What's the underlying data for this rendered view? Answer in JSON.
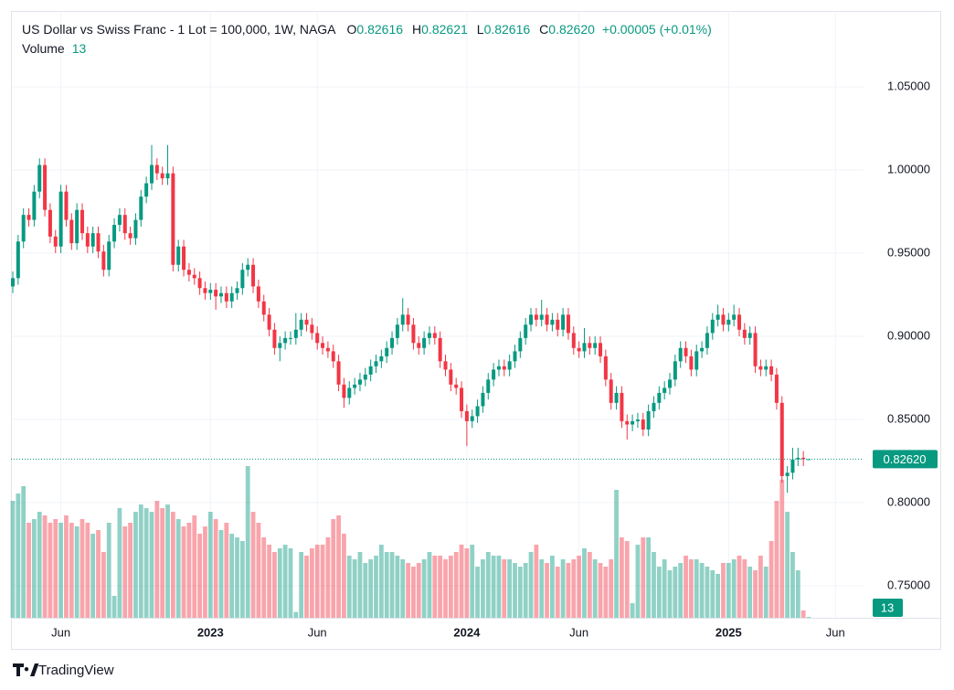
{
  "header": {
    "title": "US Dollar vs Swiss Franc - 1 Lot = 100,000, 1W, NAGA",
    "ohlc": [
      {
        "label": "O",
        "value": "0.82616"
      },
      {
        "label": "H",
        "value": "0.82621"
      },
      {
        "label": "L",
        "value": "0.82616"
      },
      {
        "label": "C",
        "value": "0.82620"
      }
    ],
    "change": "+0.00005 (+0.01%)",
    "volume_label": "Volume"
  },
  "footer": {
    "brand": "TradingView"
  },
  "chart_data": {
    "type": "candlestick",
    "up_color": "#089981",
    "down_color": "#f23645",
    "grid": true,
    "ylim": [
      0.7308,
      1.0956
    ],
    "yticks": [
      {
        "value": 0.75,
        "label": "0.75000"
      },
      {
        "value": 0.8,
        "label": "0.80000"
      },
      {
        "value": 0.85,
        "label": "0.85000"
      },
      {
        "value": 0.9,
        "label": "0.90000"
      },
      {
        "value": 0.95,
        "label": "0.95000"
      },
      {
        "value": 1.0,
        "label": "1.00000"
      },
      {
        "value": 1.05,
        "label": "1.05000"
      }
    ],
    "last_price": {
      "value": 0.8262,
      "label": "0.82620"
    },
    "volume_lim": [
      0,
      2400
    ],
    "categories": [
      null,
      null,
      null,
      null,
      null,
      null,
      null,
      null,
      null,
      "Jun",
      null,
      null,
      null,
      null,
      null,
      null,
      null,
      null,
      null,
      null,
      null,
      null,
      null,
      null,
      null,
      null,
      null,
      null,
      null,
      null,
      null,
      null,
      null,
      null,
      null,
      null,
      null,
      "2023",
      null,
      null,
      null,
      null,
      null,
      null,
      null,
      null,
      null,
      null,
      null,
      null,
      null,
      null,
      null,
      null,
      null,
      null,
      null,
      "Jun",
      null,
      null,
      null,
      null,
      null,
      null,
      null,
      null,
      null,
      null,
      null,
      null,
      null,
      null,
      null,
      null,
      null,
      null,
      null,
      null,
      null,
      null,
      null,
      null,
      null,
      null,
      null,
      "2024",
      null,
      null,
      null,
      null,
      null,
      null,
      null,
      null,
      null,
      null,
      null,
      null,
      null,
      null,
      null,
      null,
      null,
      null,
      null,
      null,
      "Jun",
      null,
      null,
      null,
      null,
      null,
      null,
      null,
      null,
      null,
      null,
      null,
      null,
      null,
      null,
      null,
      null,
      null,
      null,
      null,
      null,
      null,
      null,
      null,
      null,
      null,
      null,
      null,
      "2025",
      null,
      null,
      null,
      null,
      null,
      null,
      null,
      null,
      null,
      null,
      null,
      null,
      null,
      null,
      null,
      null,
      null,
      null,
      null,
      "Jun",
      null,
      null,
      null,
      null,
      null
    ],
    "open": [
      0.93,
      0.935,
      0.957,
      0.973,
      0.97,
      0.987,
      1.003,
      0.976,
      0.96,
      0.954,
      0.987,
      0.97,
      0.956,
      0.976,
      0.962,
      0.954,
      0.962,
      0.951,
      0.94,
      0.957,
      0.967,
      0.973,
      0.962,
      0.959,
      0.97,
      0.984,
      0.992,
      1.003,
      0.998,
      0.995,
      0.998,
      0.943,
      0.954,
      0.94,
      0.937,
      0.935,
      0.929,
      0.926,
      0.928,
      0.924,
      0.926,
      0.921,
      0.926,
      0.929,
      0.94,
      0.943,
      0.93,
      0.921,
      0.913,
      0.904,
      0.893,
      0.896,
      0.899,
      0.899,
      0.904,
      0.91,
      0.907,
      0.902,
      0.896,
      0.893,
      0.891,
      0.885,
      0.871,
      0.863,
      0.869,
      0.871,
      0.874,
      0.877,
      0.882,
      0.885,
      0.888,
      0.893,
      0.899,
      0.907,
      0.913,
      0.907,
      0.896,
      0.893,
      0.899,
      0.902,
      0.899,
      0.885,
      0.88,
      0.871,
      0.869,
      0.855,
      0.849,
      0.852,
      0.858,
      0.866,
      0.874,
      0.88,
      0.882,
      0.88,
      0.885,
      0.891,
      0.899,
      0.907,
      0.913,
      0.91,
      0.913,
      0.907,
      0.91,
      0.904,
      0.913,
      0.902,
      0.893,
      0.891,
      0.896,
      0.893,
      0.896,
      0.888,
      0.874,
      0.86,
      0.866,
      0.849,
      0.847,
      0.849,
      0.85,
      0.844,
      0.855,
      0.86,
      0.866,
      0.869,
      0.874,
      0.885,
      0.893,
      0.888,
      0.88,
      0.891,
      0.893,
      0.902,
      0.91,
      0.913,
      0.907,
      0.91,
      0.913,
      0.904,
      0.899,
      0.902,
      0.882,
      0.88,
      0.882,
      0.877,
      0.86,
      0.816,
      0.818,
      0.826,
      0.827,
      0.82616,
      null,
      null,
      null,
      null,
      null,
      null,
      null,
      null,
      null,
      null
    ],
    "high": [
      0.939,
      0.961,
      0.977,
      0.977,
      0.991,
      1.007,
      1.007,
      0.98,
      0.964,
      0.991,
      0.991,
      0.974,
      0.98,
      0.98,
      0.966,
      0.966,
      0.966,
      0.955,
      0.961,
      0.971,
      0.977,
      0.977,
      0.966,
      0.974,
      0.988,
      0.996,
      1.015,
      1.007,
      1.002,
      1.015,
      1.002,
      0.958,
      0.958,
      0.944,
      0.941,
      0.939,
      0.933,
      0.932,
      0.932,
      0.93,
      0.93,
      0.93,
      0.933,
      0.944,
      0.947,
      0.947,
      0.934,
      0.925,
      0.917,
      0.908,
      0.9,
      0.903,
      0.903,
      0.914,
      0.914,
      0.914,
      0.911,
      0.906,
      0.9,
      0.897,
      0.895,
      0.889,
      0.875,
      0.873,
      0.875,
      0.878,
      0.881,
      0.886,
      0.889,
      0.892,
      0.897,
      0.903,
      0.911,
      0.923,
      0.917,
      0.911,
      0.9,
      0.903,
      0.906,
      0.906,
      0.903,
      0.889,
      0.884,
      0.875,
      0.873,
      0.859,
      0.856,
      0.862,
      0.87,
      0.878,
      0.884,
      0.886,
      0.886,
      0.889,
      0.895,
      0.903,
      0.911,
      0.917,
      0.917,
      0.922,
      0.917,
      0.914,
      0.914,
      0.917,
      0.917,
      0.906,
      0.897,
      0.905,
      0.9,
      0.9,
      0.9,
      0.892,
      0.878,
      0.87,
      0.87,
      0.853,
      0.853,
      0.854,
      0.854,
      0.859,
      0.864,
      0.87,
      0.873,
      0.878,
      0.889,
      0.897,
      0.897,
      0.892,
      0.895,
      0.897,
      0.906,
      0.914,
      0.919,
      0.917,
      0.914,
      0.919,
      0.917,
      0.908,
      0.906,
      0.906,
      0.886,
      0.886,
      0.886,
      0.881,
      0.864,
      0.822,
      0.833,
      0.833,
      0.831,
      0.82621,
      null,
      null,
      null,
      null,
      null,
      null,
      null,
      null,
      null,
      null
    ],
    "low": [
      0.926,
      0.931,
      0.953,
      0.966,
      0.966,
      0.983,
      0.972,
      0.956,
      0.95,
      0.95,
      0.966,
      0.952,
      0.952,
      0.958,
      0.95,
      0.95,
      0.947,
      0.936,
      0.936,
      0.953,
      0.963,
      0.958,
      0.955,
      0.955,
      0.966,
      0.98,
      0.988,
      0.994,
      0.991,
      0.991,
      0.939,
      0.939,
      0.936,
      0.933,
      0.931,
      0.925,
      0.922,
      0.922,
      0.916,
      0.92,
      0.917,
      0.917,
      0.922,
      0.925,
      0.936,
      0.926,
      0.917,
      0.909,
      0.9,
      0.889,
      0.885,
      0.892,
      0.895,
      0.895,
      0.9,
      0.903,
      0.898,
      0.892,
      0.889,
      0.887,
      0.881,
      0.867,
      0.857,
      0.859,
      0.865,
      0.867,
      0.87,
      0.873,
      0.878,
      0.881,
      0.884,
      0.889,
      0.895,
      0.903,
      0.903,
      0.892,
      0.889,
      0.889,
      0.895,
      0.895,
      0.881,
      0.876,
      0.867,
      0.865,
      0.851,
      0.834,
      0.845,
      0.848,
      0.854,
      0.862,
      0.87,
      0.876,
      0.876,
      0.876,
      0.881,
      0.887,
      0.895,
      0.903,
      0.906,
      0.906,
      0.903,
      0.903,
      0.9,
      0.9,
      0.898,
      0.889,
      0.887,
      0.887,
      0.889,
      0.889,
      0.884,
      0.87,
      0.856,
      0.856,
      0.845,
      0.838,
      0.843,
      0.845,
      0.84,
      0.84,
      0.851,
      0.856,
      0.862,
      0.865,
      0.87,
      0.881,
      0.884,
      0.876,
      0.876,
      0.887,
      0.889,
      0.898,
      0.906,
      0.903,
      0.903,
      0.906,
      0.9,
      0.895,
      0.895,
      0.878,
      0.876,
      0.876,
      0.873,
      0.856,
      0.812,
      0.806,
      0.814,
      0.822,
      0.822,
      0.82616,
      null,
      null,
      null,
      null,
      null,
      null,
      null,
      null,
      null,
      null
    ],
    "close": [
      0.935,
      0.957,
      0.973,
      0.97,
      0.987,
      1.003,
      0.976,
      0.96,
      0.954,
      0.987,
      0.97,
      0.956,
      0.976,
      0.962,
      0.954,
      0.962,
      0.951,
      0.94,
      0.957,
      0.967,
      0.973,
      0.962,
      0.959,
      0.97,
      0.984,
      0.992,
      1.003,
      0.998,
      0.995,
      0.998,
      0.943,
      0.954,
      0.94,
      0.937,
      0.935,
      0.929,
      0.926,
      0.928,
      0.924,
      0.926,
      0.921,
      0.926,
      0.929,
      0.94,
      0.943,
      0.93,
      0.921,
      0.913,
      0.904,
      0.893,
      0.896,
      0.899,
      0.899,
      0.904,
      0.91,
      0.907,
      0.902,
      0.896,
      0.893,
      0.891,
      0.885,
      0.871,
      0.863,
      0.869,
      0.871,
      0.874,
      0.877,
      0.882,
      0.885,
      0.888,
      0.893,
      0.899,
      0.907,
      0.913,
      0.907,
      0.896,
      0.893,
      0.899,
      0.902,
      0.899,
      0.885,
      0.88,
      0.871,
      0.869,
      0.855,
      0.849,
      0.852,
      0.858,
      0.866,
      0.874,
      0.88,
      0.882,
      0.88,
      0.885,
      0.891,
      0.899,
      0.907,
      0.913,
      0.91,
      0.913,
      0.907,
      0.91,
      0.904,
      0.913,
      0.902,
      0.893,
      0.891,
      0.896,
      0.893,
      0.896,
      0.888,
      0.874,
      0.86,
      0.866,
      0.849,
      0.847,
      0.849,
      0.85,
      0.844,
      0.855,
      0.86,
      0.866,
      0.869,
      0.874,
      0.885,
      0.893,
      0.888,
      0.88,
      0.891,
      0.893,
      0.902,
      0.91,
      0.913,
      0.907,
      0.91,
      0.913,
      0.904,
      0.899,
      0.902,
      0.882,
      0.88,
      0.882,
      0.877,
      0.86,
      0.816,
      0.818,
      0.826,
      0.827,
      0.82616,
      0.8262,
      null,
      null,
      null,
      null,
      null,
      null,
      null,
      null,
      null,
      null
    ],
    "volume": [
      1600,
      1700,
      1800,
      1300,
      1350,
      1450,
      1400,
      1300,
      1350,
      1300,
      1400,
      1300,
      1250,
      1350,
      1300,
      1150,
      1200,
      900,
      1300,
      300,
      1500,
      1250,
      1300,
      1450,
      1550,
      1500,
      1450,
      1600,
      1500,
      1550,
      1450,
      1350,
      1250,
      1300,
      1400,
      1150,
      1250,
      1450,
      1350,
      1200,
      1300,
      1150,
      1100,
      1050,
      2075,
      1450,
      1300,
      1100,
      1000,
      900,
      950,
      1000,
      950,
      80,
      900,
      850,
      950,
      1000,
      1000,
      1100,
      1350,
      1400,
      1150,
      850,
      800,
      900,
      750,
      800,
      850,
      1000,
      900,
      900,
      850,
      800,
      750,
      700,
      750,
      800,
      900,
      850,
      850,
      800,
      850,
      900,
      1000,
      950,
      1000,
      700,
      800,
      900,
      850,
      850,
      800,
      800,
      750,
      700,
      750,
      900,
      1000,
      800,
      750,
      850,
      700,
      800,
      750,
      800,
      850,
      950,
      900,
      800,
      750,
      700,
      800,
      1750,
      1100,
      1050,
      200,
      1000,
      1100,
      1100,
      900,
      700,
      800,
      650,
      700,
      750,
      850,
      800,
      800,
      750,
      700,
      650,
      600,
      750,
      750,
      800,
      850,
      800,
      700,
      650,
      850,
      700,
      1050,
      1600,
      1890,
      1450,
      900,
      650,
      100,
      13,
      null,
      null,
      null,
      null,
      null,
      null,
      null,
      null,
      null,
      null
    ]
  }
}
